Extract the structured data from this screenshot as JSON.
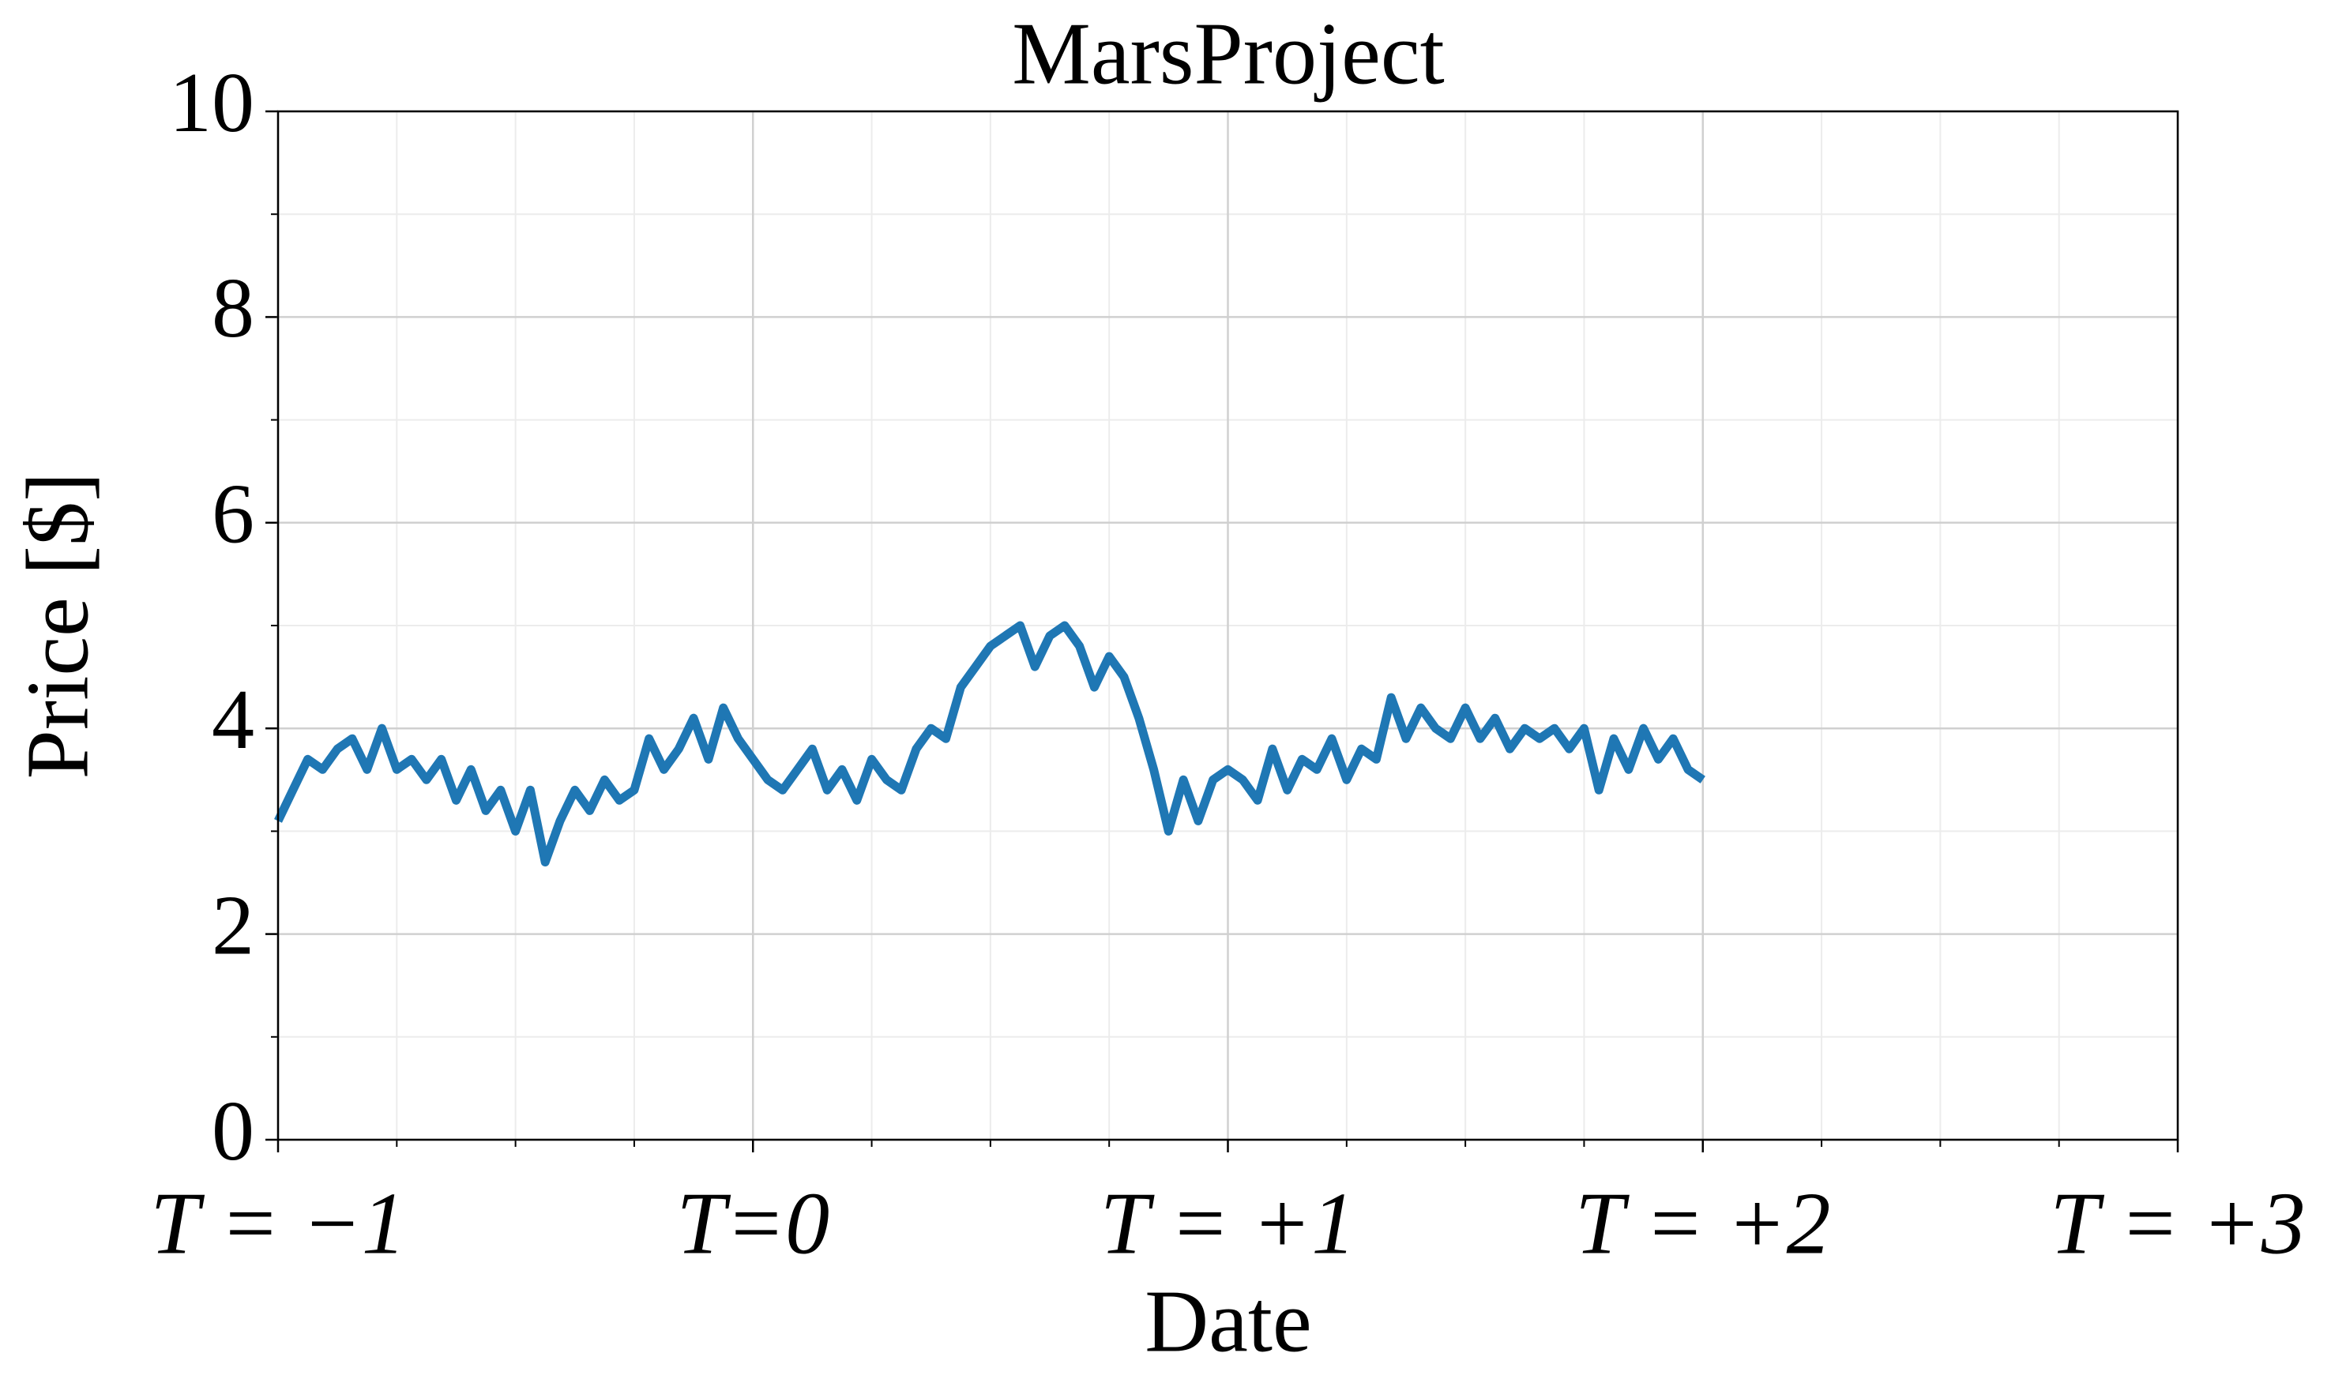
{
  "chart_data": {
    "type": "line",
    "title": "MarsProject",
    "xlabel": "Date",
    "ylabel": "Price [$]",
    "x": [
      -1,
      -0.96875,
      -0.9375,
      -0.90625,
      -0.875,
      -0.84375,
      -0.8125,
      -0.78125,
      -0.75,
      -0.71875,
      -0.6875,
      -0.65625,
      -0.625,
      -0.59375,
      -0.5625,
      -0.53125,
      -0.5,
      -0.46875,
      -0.4375,
      -0.40625,
      -0.375,
      -0.34375,
      -0.3125,
      -0.28125,
      -0.25,
      -0.21875,
      -0.1875,
      -0.15625,
      -0.125,
      -0.09375,
      -0.0625,
      -0.03125,
      0,
      0.03125,
      0.0625,
      0.09375,
      0.125,
      0.15625,
      0.1875,
      0.21875,
      0.25,
      0.28125,
      0.3125,
      0.34375,
      0.375,
      0.40625,
      0.4375,
      0.46875,
      0.5,
      0.53125,
      0.5625,
      0.59375,
      0.625,
      0.65625,
      0.6875,
      0.71875,
      0.75,
      0.78125,
      0.8125,
      0.84375,
      0.875,
      0.90625,
      0.9375,
      0.96875,
      1,
      1.03125,
      1.0625,
      1.09375,
      1.125,
      1.15625,
      1.1875,
      1.21875,
      1.25,
      1.28125,
      1.3125,
      1.34375,
      1.375,
      1.40625,
      1.4375,
      1.46875,
      1.5,
      1.53125,
      1.5625,
      1.59375,
      1.625,
      1.65625,
      1.6875,
      1.71875,
      1.75,
      1.78125,
      1.8125,
      1.84375,
      1.875,
      1.90625,
      1.9375,
      1.96875,
      2
    ],
    "series": [
      {
        "name": "MarsProject",
        "color": "#1f77b4",
        "values": [
          3.1,
          3.4,
          3.7,
          3.6,
          3.8,
          3.9,
          3.6,
          4.0,
          3.6,
          3.7,
          3.5,
          3.7,
          3.3,
          3.6,
          3.2,
          3.4,
          3.0,
          3.4,
          2.7,
          3.1,
          3.4,
          3.2,
          3.5,
          3.3,
          3.4,
          3.9,
          3.6,
          3.8,
          4.1,
          3.7,
          4.2,
          3.9,
          3.7,
          3.5,
          3.4,
          3.6,
          3.8,
          3.4,
          3.6,
          3.3,
          3.7,
          3.5,
          3.4,
          3.8,
          4.0,
          3.9,
          4.4,
          4.6,
          4.8,
          4.9,
          5.0,
          4.6,
          4.9,
          5.0,
          4.8,
          4.4,
          4.7,
          4.5,
          4.1,
          3.6,
          3.0,
          3.5,
          3.1,
          3.5,
          3.6,
          3.5,
          3.3,
          3.8,
          3.4,
          3.7,
          3.6,
          3.9,
          3.5,
          3.8,
          3.7,
          4.3,
          3.9,
          4.2,
          4.0,
          3.9,
          4.2,
          3.9,
          4.1,
          3.8,
          4.0,
          3.9,
          4.0,
          3.8,
          4.0,
          3.4,
          3.9,
          3.6,
          4.0,
          3.7,
          3.9,
          3.6,
          3.5
        ]
      }
    ],
    "xlim": [
      -1,
      3
    ],
    "xticks": [
      {
        "value": -1,
        "label": "T = −1"
      },
      {
        "value": 0,
        "label": "T=0"
      },
      {
        "value": 1,
        "label": "T = +1"
      },
      {
        "value": 2,
        "label": "T = +2"
      },
      {
        "value": 3,
        "label": "T = +3"
      }
    ],
    "ylim": [
      0,
      10
    ],
    "yticks": [
      0,
      2,
      4,
      6,
      8,
      10
    ],
    "grid": true
  }
}
